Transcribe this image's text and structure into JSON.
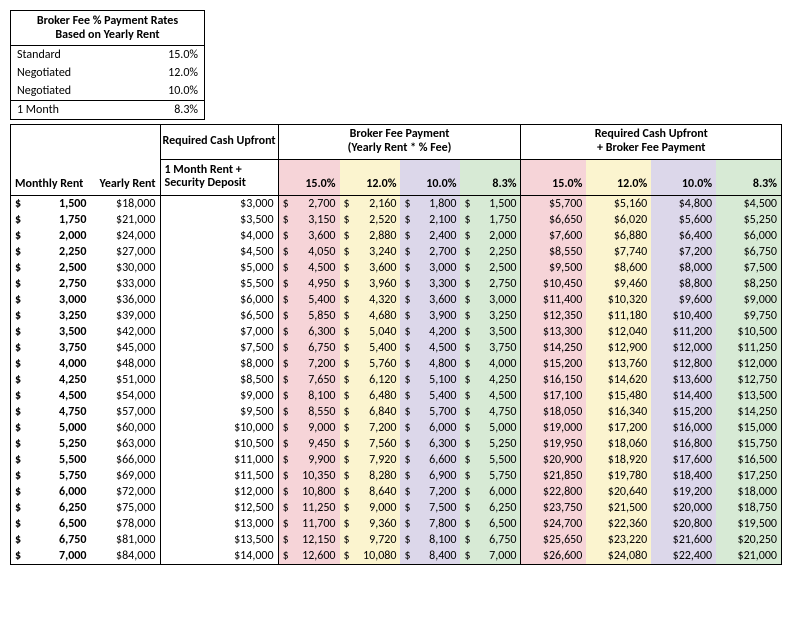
{
  "colors": {
    "pink": "#f6d4d8",
    "yellow": "#fbf4cf",
    "purple": "#dcd7ea",
    "green": "#d7ead5",
    "border": "#000000",
    "background": "#ffffff",
    "text": "#000000"
  },
  "font": {
    "family": "Calibri",
    "size_pt": 9
  },
  "rates_box": {
    "title_line1": "Broker Fee % Payment Rates",
    "title_line2": "Based on Yearly Rent",
    "rows": [
      {
        "label": "Standard",
        "value": "15.0%"
      },
      {
        "label": "Negotiated",
        "value": "12.0%"
      },
      {
        "label": "Negotiated",
        "value": "10.0%"
      },
      {
        "label": "1 Month",
        "value": "8.3%"
      }
    ]
  },
  "headers": {
    "required_cash": "Required Cash Upfront",
    "broker_fee_l1": "Broker Fee Payment",
    "broker_fee_l2": "(Yearly Rent * % Fee)",
    "total_l1": "Required Cash Upfront",
    "total_l2": "+ Broker Fee Payment",
    "monthly_rent": "Monthly Rent",
    "yearly_rent": "Yearly Rent",
    "one_month_deposit_l1": "1 Month Rent +",
    "one_month_deposit_l2": "Security Deposit",
    "pct": [
      "15.0%",
      "12.0%",
      "10.0%",
      "8.3%"
    ]
  },
  "column_colors": [
    "pink",
    "yellow",
    "purple",
    "green"
  ],
  "rows": [
    {
      "monthly": "1,500",
      "yearly": "$18,000",
      "upfront": "$3,000",
      "fee": [
        "2,700",
        "2,160",
        "1,800",
        "1,500"
      ],
      "total": [
        "$5,700",
        "$5,160",
        "$4,800",
        "$4,500"
      ]
    },
    {
      "monthly": "1,750",
      "yearly": "$21,000",
      "upfront": "$3,500",
      "fee": [
        "3,150",
        "2,520",
        "2,100",
        "1,750"
      ],
      "total": [
        "$6,650",
        "$6,020",
        "$5,600",
        "$5,250"
      ]
    },
    {
      "monthly": "2,000",
      "yearly": "$24,000",
      "upfront": "$4,000",
      "fee": [
        "3,600",
        "2,880",
        "2,400",
        "2,000"
      ],
      "total": [
        "$7,600",
        "$6,880",
        "$6,400",
        "$6,000"
      ]
    },
    {
      "monthly": "2,250",
      "yearly": "$27,000",
      "upfront": "$4,500",
      "fee": [
        "4,050",
        "3,240",
        "2,700",
        "2,250"
      ],
      "total": [
        "$8,550",
        "$7,740",
        "$7,200",
        "$6,750"
      ]
    },
    {
      "monthly": "2,500",
      "yearly": "$30,000",
      "upfront": "$5,000",
      "fee": [
        "4,500",
        "3,600",
        "3,000",
        "2,500"
      ],
      "total": [
        "$9,500",
        "$8,600",
        "$8,000",
        "$7,500"
      ]
    },
    {
      "monthly": "2,750",
      "yearly": "$33,000",
      "upfront": "$5,500",
      "fee": [
        "4,950",
        "3,960",
        "3,300",
        "2,750"
      ],
      "total": [
        "$10,450",
        "$9,460",
        "$8,800",
        "$8,250"
      ]
    },
    {
      "monthly": "3,000",
      "yearly": "$36,000",
      "upfront": "$6,000",
      "fee": [
        "5,400",
        "4,320",
        "3,600",
        "3,000"
      ],
      "total": [
        "$11,400",
        "$10,320",
        "$9,600",
        "$9,000"
      ]
    },
    {
      "monthly": "3,250",
      "yearly": "$39,000",
      "upfront": "$6,500",
      "fee": [
        "5,850",
        "4,680",
        "3,900",
        "3,250"
      ],
      "total": [
        "$12,350",
        "$11,180",
        "$10,400",
        "$9,750"
      ]
    },
    {
      "monthly": "3,500",
      "yearly": "$42,000",
      "upfront": "$7,000",
      "fee": [
        "6,300",
        "5,040",
        "4,200",
        "3,500"
      ],
      "total": [
        "$13,300",
        "$12,040",
        "$11,200",
        "$10,500"
      ]
    },
    {
      "monthly": "3,750",
      "yearly": "$45,000",
      "upfront": "$7,500",
      "fee": [
        "6,750",
        "5,400",
        "4,500",
        "3,750"
      ],
      "total": [
        "$14,250",
        "$12,900",
        "$12,000",
        "$11,250"
      ]
    },
    {
      "monthly": "4,000",
      "yearly": "$48,000",
      "upfront": "$8,000",
      "fee": [
        "7,200",
        "5,760",
        "4,800",
        "4,000"
      ],
      "total": [
        "$15,200",
        "$13,760",
        "$12,800",
        "$12,000"
      ]
    },
    {
      "monthly": "4,250",
      "yearly": "$51,000",
      "upfront": "$8,500",
      "fee": [
        "7,650",
        "6,120",
        "5,100",
        "4,250"
      ],
      "total": [
        "$16,150",
        "$14,620",
        "$13,600",
        "$12,750"
      ]
    },
    {
      "monthly": "4,500",
      "yearly": "$54,000",
      "upfront": "$9,000",
      "fee": [
        "8,100",
        "6,480",
        "5,400",
        "4,500"
      ],
      "total": [
        "$17,100",
        "$15,480",
        "$14,400",
        "$13,500"
      ]
    },
    {
      "monthly": "4,750",
      "yearly": "$57,000",
      "upfront": "$9,500",
      "fee": [
        "8,550",
        "6,840",
        "5,700",
        "4,750"
      ],
      "total": [
        "$18,050",
        "$16,340",
        "$15,200",
        "$14,250"
      ]
    },
    {
      "monthly": "5,000",
      "yearly": "$60,000",
      "upfront": "$10,000",
      "fee": [
        "9,000",
        "7,200",
        "6,000",
        "5,000"
      ],
      "total": [
        "$19,000",
        "$17,200",
        "$16,000",
        "$15,000"
      ]
    },
    {
      "monthly": "5,250",
      "yearly": "$63,000",
      "upfront": "$10,500",
      "fee": [
        "9,450",
        "7,560",
        "6,300",
        "5,250"
      ],
      "total": [
        "$19,950",
        "$18,060",
        "$16,800",
        "$15,750"
      ]
    },
    {
      "monthly": "5,500",
      "yearly": "$66,000",
      "upfront": "$11,000",
      "fee": [
        "9,900",
        "7,920",
        "6,600",
        "5,500"
      ],
      "total": [
        "$20,900",
        "$18,920",
        "$17,600",
        "$16,500"
      ]
    },
    {
      "monthly": "5,750",
      "yearly": "$69,000",
      "upfront": "$11,500",
      "fee": [
        "10,350",
        "8,280",
        "6,900",
        "5,750"
      ],
      "total": [
        "$21,850",
        "$19,780",
        "$18,400",
        "$17,250"
      ]
    },
    {
      "monthly": "6,000",
      "yearly": "$72,000",
      "upfront": "$12,000",
      "fee": [
        "10,800",
        "8,640",
        "7,200",
        "6,000"
      ],
      "total": [
        "$22,800",
        "$20,640",
        "$19,200",
        "$18,000"
      ]
    },
    {
      "monthly": "6,250",
      "yearly": "$75,000",
      "upfront": "$12,500",
      "fee": [
        "11,250",
        "9,000",
        "7,500",
        "6,250"
      ],
      "total": [
        "$23,750",
        "$21,500",
        "$20,000",
        "$18,750"
      ]
    },
    {
      "monthly": "6,500",
      "yearly": "$78,000",
      "upfront": "$13,000",
      "fee": [
        "11,700",
        "9,360",
        "7,800",
        "6,500"
      ],
      "total": [
        "$24,700",
        "$22,360",
        "$20,800",
        "$19,500"
      ]
    },
    {
      "monthly": "6,750",
      "yearly": "$81,000",
      "upfront": "$13,500",
      "fee": [
        "12,150",
        "9,720",
        "8,100",
        "6,750"
      ],
      "total": [
        "$25,650",
        "$23,220",
        "$21,600",
        "$20,250"
      ]
    },
    {
      "monthly": "7,000",
      "yearly": "$84,000",
      "upfront": "$14,000",
      "fee": [
        "12,600",
        "10,080",
        "8,400",
        "7,000"
      ],
      "total": [
        "$26,600",
        "$24,080",
        "$22,400",
        "$21,000"
      ]
    }
  ]
}
